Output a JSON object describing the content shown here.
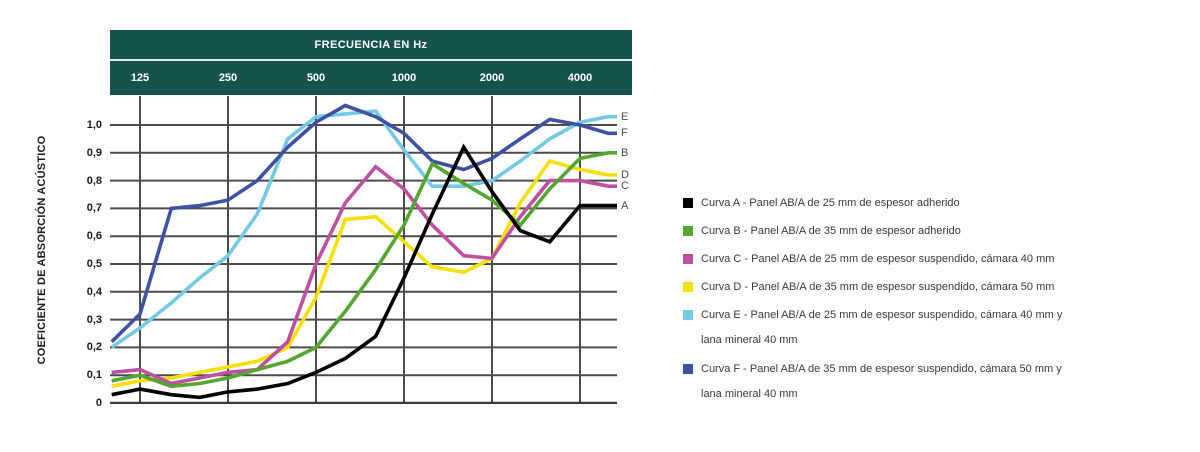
{
  "header": {
    "title": "FRECUENCIA EN Hz"
  },
  "axis": {
    "y_title": "COEFICIENTE DE ABSORCIÓN ACÚSTICO",
    "y_ticks": [
      {
        "label": "1,0",
        "value": 1.0
      },
      {
        "label": "0,9",
        "value": 0.9
      },
      {
        "label": "0,8",
        "value": 0.8
      },
      {
        "label": "0,7",
        "value": 0.7
      },
      {
        "label": "0,6",
        "value": 0.6
      },
      {
        "label": "0,5",
        "value": 0.5
      },
      {
        "label": "0,4",
        "value": 0.4
      },
      {
        "label": "0,3",
        "value": 0.3
      },
      {
        "label": "0,2",
        "value": 0.2
      },
      {
        "label": "0,1",
        "value": 0.1
      },
      {
        "label": "0",
        "value": 0
      }
    ],
    "x_ticks": [
      {
        "label": "125",
        "f": 125
      },
      {
        "label": "250",
        "f": 250
      },
      {
        "label": "500",
        "f": 500
      },
      {
        "label": "1000",
        "f": 1000
      },
      {
        "label": "2000",
        "f": 2000
      },
      {
        "label": "4000",
        "f": 4000
      }
    ]
  },
  "chart_data": {
    "type": "line",
    "title": "FRECUENCIA EN Hz",
    "xlabel": "FRECUENCIA EN Hz",
    "ylabel": "COEFICIENTE DE ABSORCIÓN ACÚSTICO",
    "x_scale": "log2",
    "x": [
      100,
      125,
      160,
      200,
      250,
      315,
      400,
      500,
      630,
      800,
      1000,
      1250,
      1600,
      2000,
      2500,
      3150,
      4000,
      5000
    ],
    "x_axis_tick_values": [
      125,
      250,
      500,
      1000,
      2000,
      4000
    ],
    "ylim": [
      0,
      1.1
    ],
    "grid": true,
    "legend_position": "right",
    "draw_order": [
      "E",
      "F",
      "D",
      "C",
      "B",
      "A"
    ],
    "series": [
      {
        "name": "A",
        "color": "#000000",
        "values": [
          0.03,
          0.05,
          0.03,
          0.02,
          0.04,
          0.05,
          0.07,
          0.11,
          0.16,
          0.24,
          0.45,
          0.68,
          0.92,
          0.76,
          0.62,
          0.58,
          0.71,
          0.71
        ]
      },
      {
        "name": "B",
        "color": "#55a630",
        "values": [
          0.08,
          0.1,
          0.06,
          0.07,
          0.09,
          0.12,
          0.15,
          0.2,
          0.33,
          0.48,
          0.64,
          0.86,
          0.79,
          0.73,
          0.64,
          0.77,
          0.88,
          0.9
        ]
      },
      {
        "name": "C",
        "color": "#bf4f9f",
        "values": [
          0.11,
          0.12,
          0.07,
          0.09,
          0.11,
          0.12,
          0.22,
          0.5,
          0.72,
          0.85,
          0.77,
          0.64,
          0.53,
          0.52,
          0.67,
          0.8,
          0.8,
          0.78
        ]
      },
      {
        "name": "D",
        "color": "#f5e003",
        "values": [
          0.06,
          0.08,
          0.09,
          0.11,
          0.13,
          0.15,
          0.2,
          0.38,
          0.66,
          0.67,
          0.58,
          0.49,
          0.47,
          0.52,
          0.72,
          0.87,
          0.84,
          0.82
        ]
      },
      {
        "name": "E",
        "color": "#74c9e5",
        "values": [
          0.2,
          0.27,
          0.36,
          0.45,
          0.53,
          0.68,
          0.95,
          1.03,
          1.04,
          1.05,
          0.91,
          0.78,
          0.78,
          0.8,
          0.87,
          0.95,
          1.01,
          1.03
        ]
      },
      {
        "name": "F",
        "color": "#3f51a3",
        "values": [
          0.22,
          0.32,
          0.7,
          0.71,
          0.73,
          0.8,
          0.92,
          1.01,
          1.07,
          1.03,
          0.97,
          0.87,
          0.84,
          0.88,
          0.95,
          1.02,
          1.0,
          0.97
        ]
      }
    ]
  },
  "legend": {
    "items": [
      {
        "letter": "A",
        "color": "#000000",
        "label": "Curva A - Panel AB/A de 25 mm de espesor adherido",
        "label2": ""
      },
      {
        "letter": "B",
        "color": "#55a630",
        "label": "Curva B - Panel AB/A de 35 mm de espesor adherido",
        "label2": ""
      },
      {
        "letter": "C",
        "color": "#bf4f9f",
        "label": "Curva C - Panel AB/A de 25 mm de espesor suspendido, cámara 40 mm",
        "label2": ""
      },
      {
        "letter": "D",
        "color": "#f5e003",
        "label": "Curva D - Panel AB/A de 35 mm de espesor suspendido, cámara 50 mm",
        "label2": ""
      },
      {
        "letter": "E",
        "color": "#74c9e5",
        "label": "Curva E - Panel AB/A de 25 mm de espesor suspendido, cámara 40 mm y",
        "label2": "lana mineral 40 mm"
      },
      {
        "letter": "F",
        "color": "#3f51a3",
        "label": "Curva F - Panel AB/A de 35 mm de espesor suspendido, cámara 50 mm y",
        "label2": "lana mineral 40 mm"
      }
    ]
  },
  "colors": {
    "header_bg": "#14534e",
    "header_separator": "#dce8e6",
    "grid": "#4c4c4c",
    "baseline": "#3c3c3c",
    "text": "#3a3a3a"
  }
}
